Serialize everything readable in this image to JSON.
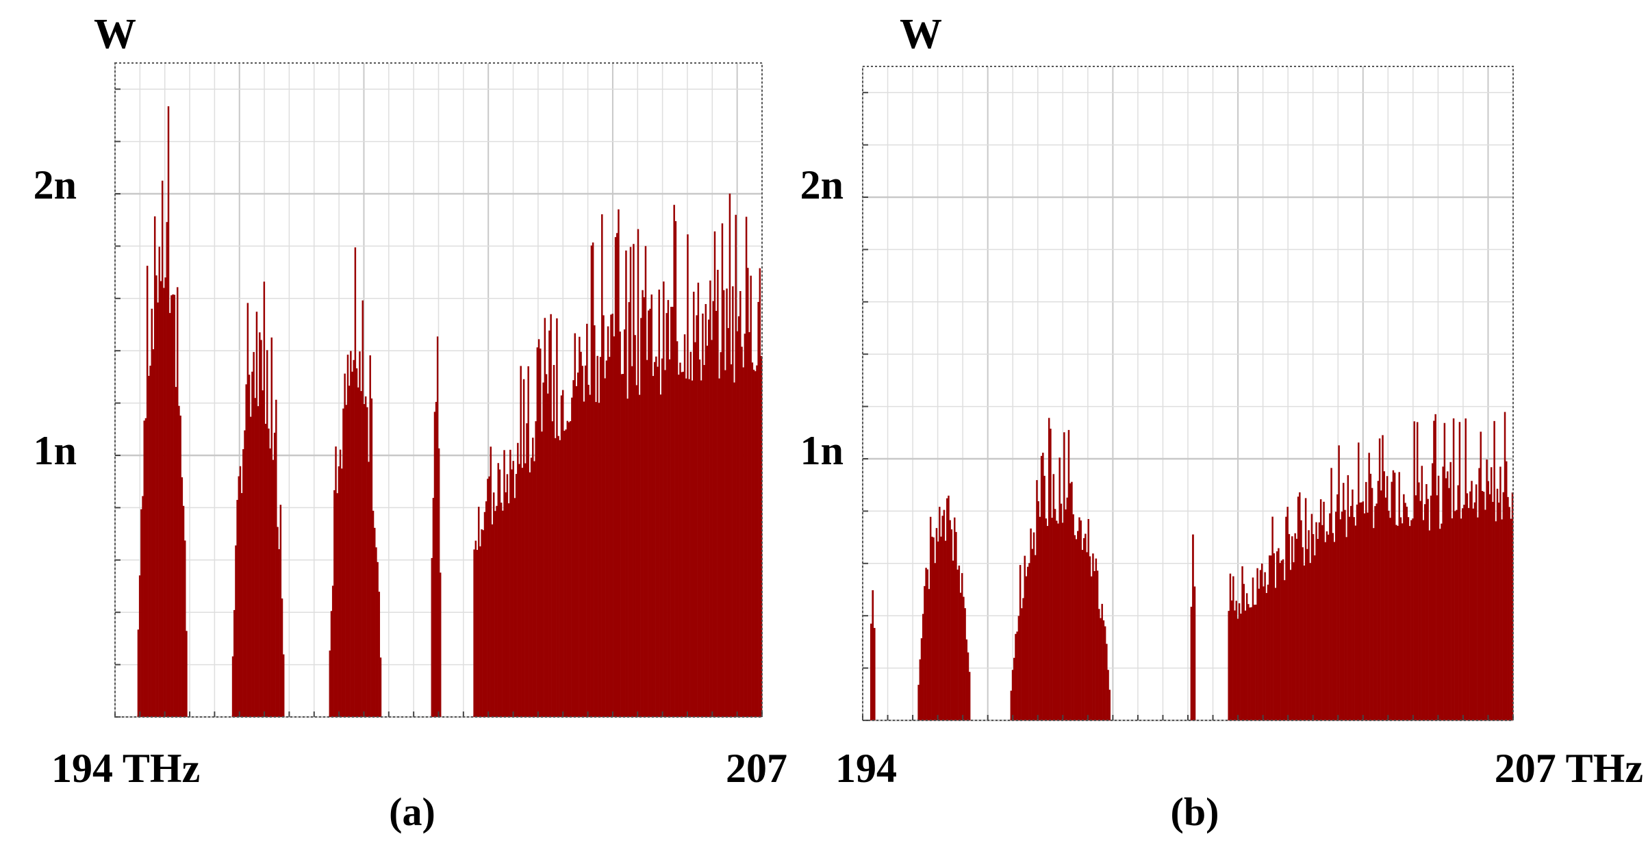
{
  "accent_color": "#990000",
  "chart_data": [
    {
      "type": "bar",
      "panel_label": "(a)",
      "ylabel": "W",
      "xlim": [
        194,
        207
      ],
      "ylim": [
        0,
        2.5
      ],
      "grid": true,
      "x_tick_labels": [
        "194 THz",
        "207"
      ],
      "y_tick_labels": [
        "2n",
        "1n"
      ],
      "y_tick_values": [
        2,
        1
      ],
      "series_color": "#990000",
      "bands": [
        {
          "x_start": 194.45,
          "x_end": 195.45,
          "peak": 2.45
        },
        {
          "x_start": 196.35,
          "x_end": 197.4,
          "peak": 1.9
        },
        {
          "x_start": 198.3,
          "x_end": 199.35,
          "peak": 1.8
        },
        {
          "x_start": 200.35,
          "x_end": 200.55,
          "peak": 1.7
        },
        {
          "x_start": 201.2,
          "x_end": 207.0,
          "peak": 2.4
        }
      ]
    },
    {
      "type": "bar",
      "panel_label": "(b)",
      "ylabel": "W",
      "xlim": [
        194,
        207
      ],
      "ylim": [
        0,
        2.5
      ],
      "grid": true,
      "x_tick_labels": [
        "194",
        "207 THz"
      ],
      "y_tick_labels": [
        "2n",
        "1n"
      ],
      "y_tick_values": [
        2,
        1
      ],
      "series_color": "#990000",
      "bands": [
        {
          "x_start": 194.15,
          "x_end": 194.25,
          "peak": 0.65
        },
        {
          "x_start": 195.1,
          "x_end": 196.15,
          "peak": 1.05
        },
        {
          "x_start": 196.95,
          "x_end": 198.95,
          "peak": 1.2
        },
        {
          "x_start": 200.55,
          "x_end": 200.65,
          "peak": 0.95
        },
        {
          "x_start": 201.3,
          "x_end": 207.0,
          "peak": 1.4
        }
      ]
    }
  ]
}
